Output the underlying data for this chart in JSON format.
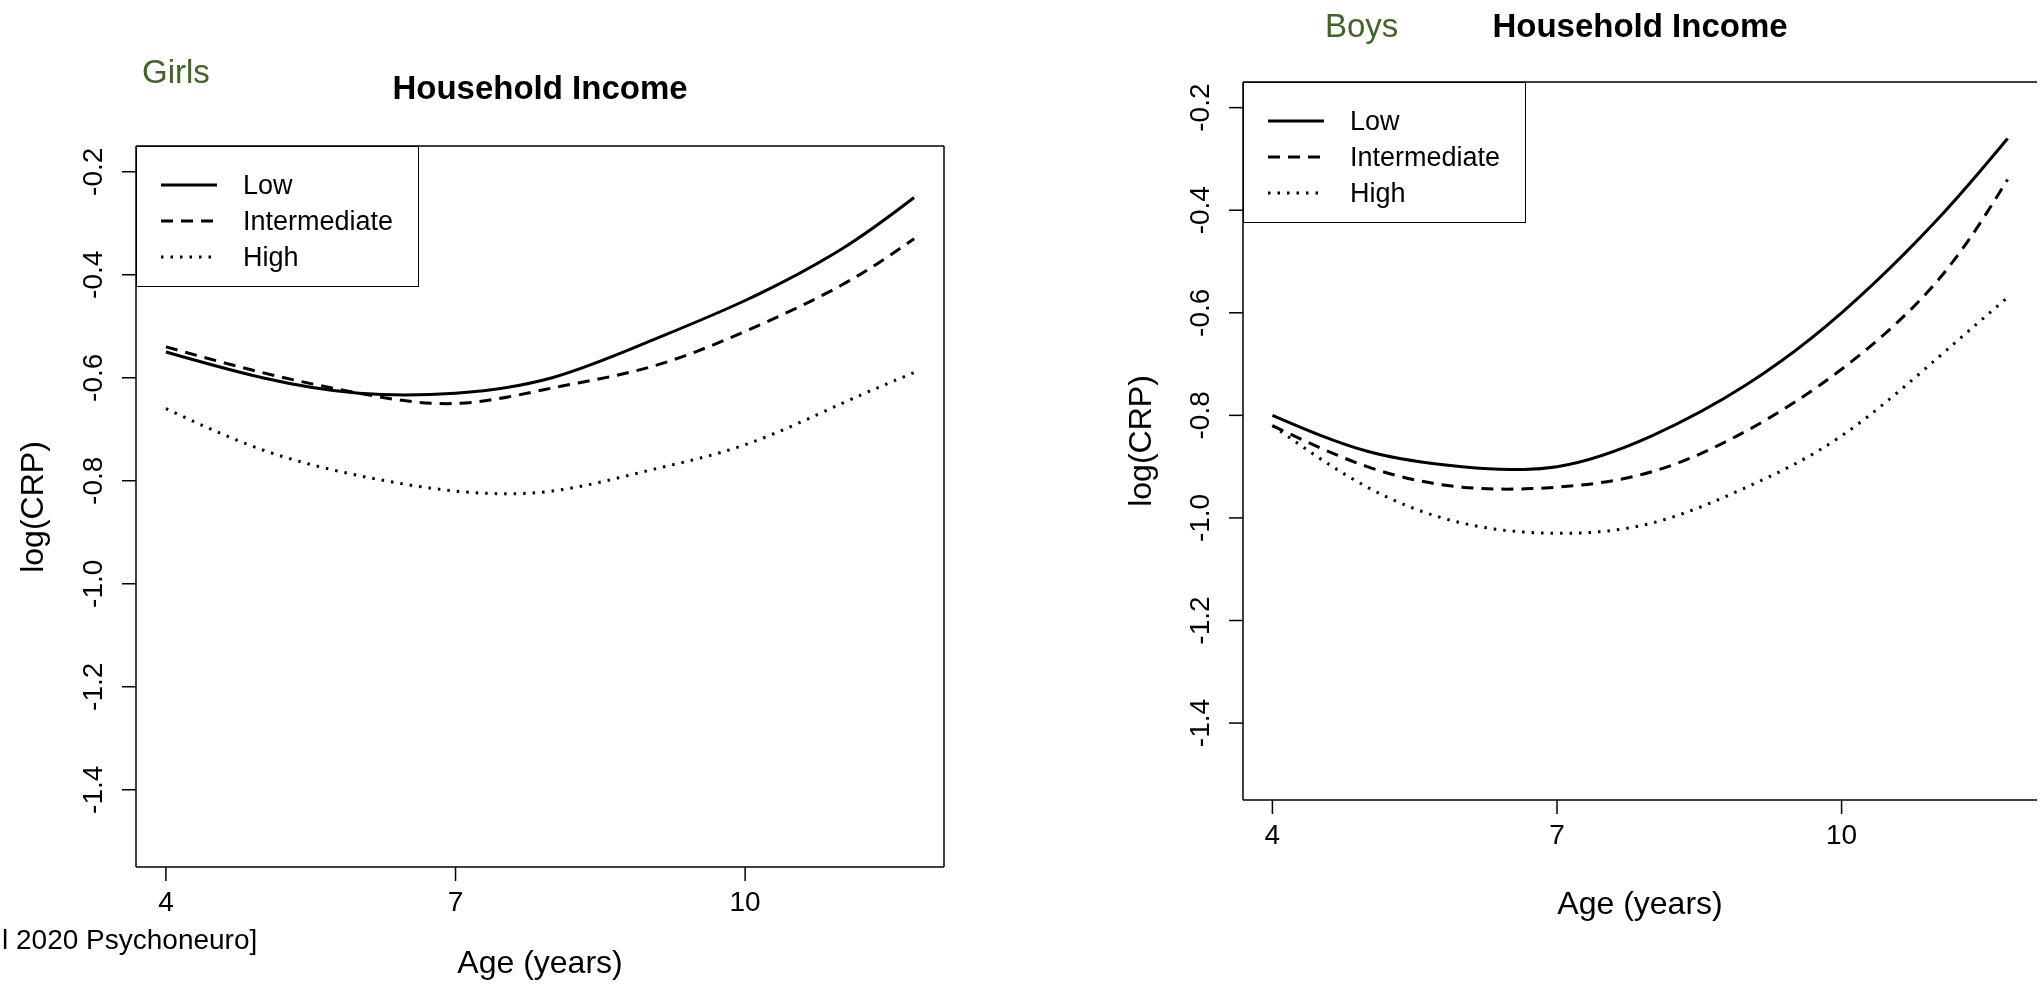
{
  "chart_data": [
    {
      "type": "line",
      "title": "Household Income",
      "subtitle": "Girls",
      "xlabel": "Age (years)",
      "ylabel": "log(CRP)",
      "x": [
        4,
        5,
        6,
        7,
        8,
        9,
        10,
        11,
        11.75
      ],
      "xlim": [
        3.69,
        12.06
      ],
      "xticks": [
        4,
        7,
        10
      ],
      "ylim": [
        -1.55,
        -0.15
      ],
      "yticks": [
        -1.4,
        -1.2,
        {
          "value": -1,
          "label": "-1.0"
        },
        -0.8,
        -0.6,
        -0.4,
        -0.2
      ],
      "legend": "top left",
      "series": [
        {
          "name": "Low",
          "color": "#000000",
          "line_style": "solid",
          "values": [
            -0.55,
            -0.6,
            -0.63,
            -0.63,
            -0.6,
            -0.53,
            -0.45,
            -0.35,
            -0.25
          ]
        },
        {
          "name": "Intermediate",
          "color": "#000000",
          "line_style": "dashed",
          "values": [
            -0.54,
            -0.59,
            -0.63,
            -0.65,
            -0.62,
            -0.58,
            -0.51,
            -0.42,
            -0.33
          ]
        },
        {
          "name": "High",
          "color": "#000000",
          "line_style": "dotted",
          "values": [
            -0.66,
            -0.74,
            -0.79,
            -0.82,
            -0.82,
            -0.78,
            -0.73,
            -0.65,
            -0.59
          ]
        }
      ],
      "annotations": [
        "l 2020 Psychoneuro]"
      ]
    },
    {
      "type": "line",
      "title": "Household Income",
      "subtitle": "Boys",
      "xlabel": "Age (years)",
      "ylabel": "log(CRP)",
      "x": [
        4,
        5,
        6,
        7,
        8,
        9,
        10,
        11,
        11.75
      ],
      "xlim": [
        3.69,
        12.06
      ],
      "xticks": [
        4,
        7,
        10
      ],
      "ylim": [
        -1.55,
        -0.15
      ],
      "yticks": [
        -1.4,
        -1.2,
        {
          "value": -1,
          "label": "-1.0"
        },
        -0.8,
        -0.6,
        -0.4,
        -0.2
      ],
      "legend": "top left",
      "series": [
        {
          "name": "Low",
          "color": "#000000",
          "line_style": "solid",
          "values": [
            -0.8,
            -0.87,
            -0.9,
            -0.9,
            -0.84,
            -0.74,
            -0.6,
            -0.42,
            -0.26
          ]
        },
        {
          "name": "Intermediate",
          "color": "#000000",
          "line_style": "dashed",
          "values": [
            -0.82,
            -0.9,
            -0.94,
            -0.94,
            -0.91,
            -0.83,
            -0.71,
            -0.54,
            -0.34
          ]
        },
        {
          "name": "High",
          "color": "#000000",
          "line_style": "dotted",
          "values": [
            -0.82,
            -0.94,
            -1.01,
            -1.03,
            -1.01,
            -0.94,
            -0.84,
            -0.69,
            -0.57
          ]
        }
      ]
    }
  ]
}
